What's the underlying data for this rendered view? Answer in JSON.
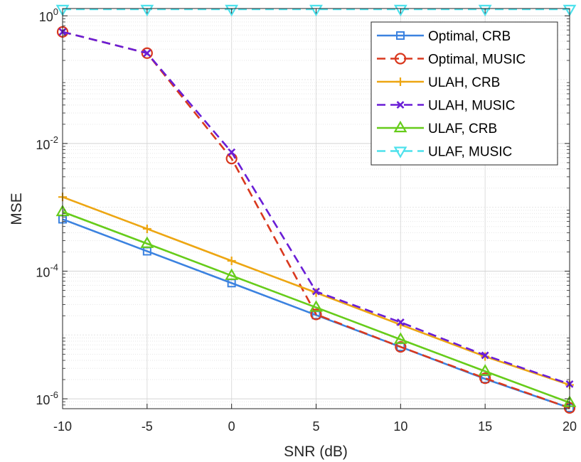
{
  "chart_data": {
    "type": "line",
    "title": "",
    "xlabel": "SNR (dB)",
    "ylabel": "MSE",
    "yscale": "log",
    "x": [
      -10,
      -5,
      0,
      5,
      10,
      15,
      20
    ],
    "xlim": [
      -10,
      20
    ],
    "ylim": [
      7e-07,
      1.3
    ],
    "xticks": [
      "-10",
      "-5",
      "0",
      "5",
      "10",
      "15",
      "20"
    ],
    "yticks": [
      {
        "base": "10",
        "exp": "0",
        "value": 1
      },
      {
        "base": "10",
        "exp": "-2",
        "value": 0.01
      },
      {
        "base": "10",
        "exp": "-4",
        "value": 0.0001
      },
      {
        "base": "10",
        "exp": "-6",
        "value": 1e-06
      }
    ],
    "grid": true,
    "legend_position": "top-right",
    "series": [
      {
        "name": "Optimal, CRB",
        "color": "#3b82e0",
        "dash": "solid",
        "marker": "square",
        "values": [
          0.00065,
          0.000205,
          6.5e-05,
          2.05e-05,
          6.5e-06,
          2.05e-06,
          7.2e-07
        ]
      },
      {
        "name": "Optimal, MUSIC",
        "color": "#d9381e",
        "dash": "dashed",
        "marker": "circle",
        "values": [
          0.56,
          0.26,
          0.0058,
          2.1e-05,
          6.5e-06,
          2.1e-06,
          7.2e-07
        ]
      },
      {
        "name": "ULAH, CRB",
        "color": "#eda612",
        "dash": "solid",
        "marker": "plus",
        "values": [
          0.00145,
          0.00046,
          0.000145,
          4.6e-05,
          1.45e-05,
          4.6e-06,
          1.65e-06
        ]
      },
      {
        "name": "ULAH, MUSIC",
        "color": "#6a1ed6",
        "dash": "dashed",
        "marker": "x",
        "values": [
          0.56,
          0.26,
          0.0073,
          4.8e-05,
          1.58e-05,
          4.8e-06,
          1.7e-06
        ]
      },
      {
        "name": "ULAF, CRB",
        "color": "#66cc1a",
        "dash": "solid",
        "marker": "triangle-up",
        "values": [
          0.00085,
          0.00027,
          8.5e-05,
          2.7e-05,
          8.5e-06,
          2.7e-06,
          8.7e-07
        ]
      },
      {
        "name": "ULAF, MUSIC",
        "color": "#4de1ec",
        "dash": "dashed",
        "marker": "triangle-down",
        "values": [
          1.27,
          1.27,
          1.27,
          1.27,
          1.27,
          1.27,
          1.27
        ]
      }
    ]
  }
}
